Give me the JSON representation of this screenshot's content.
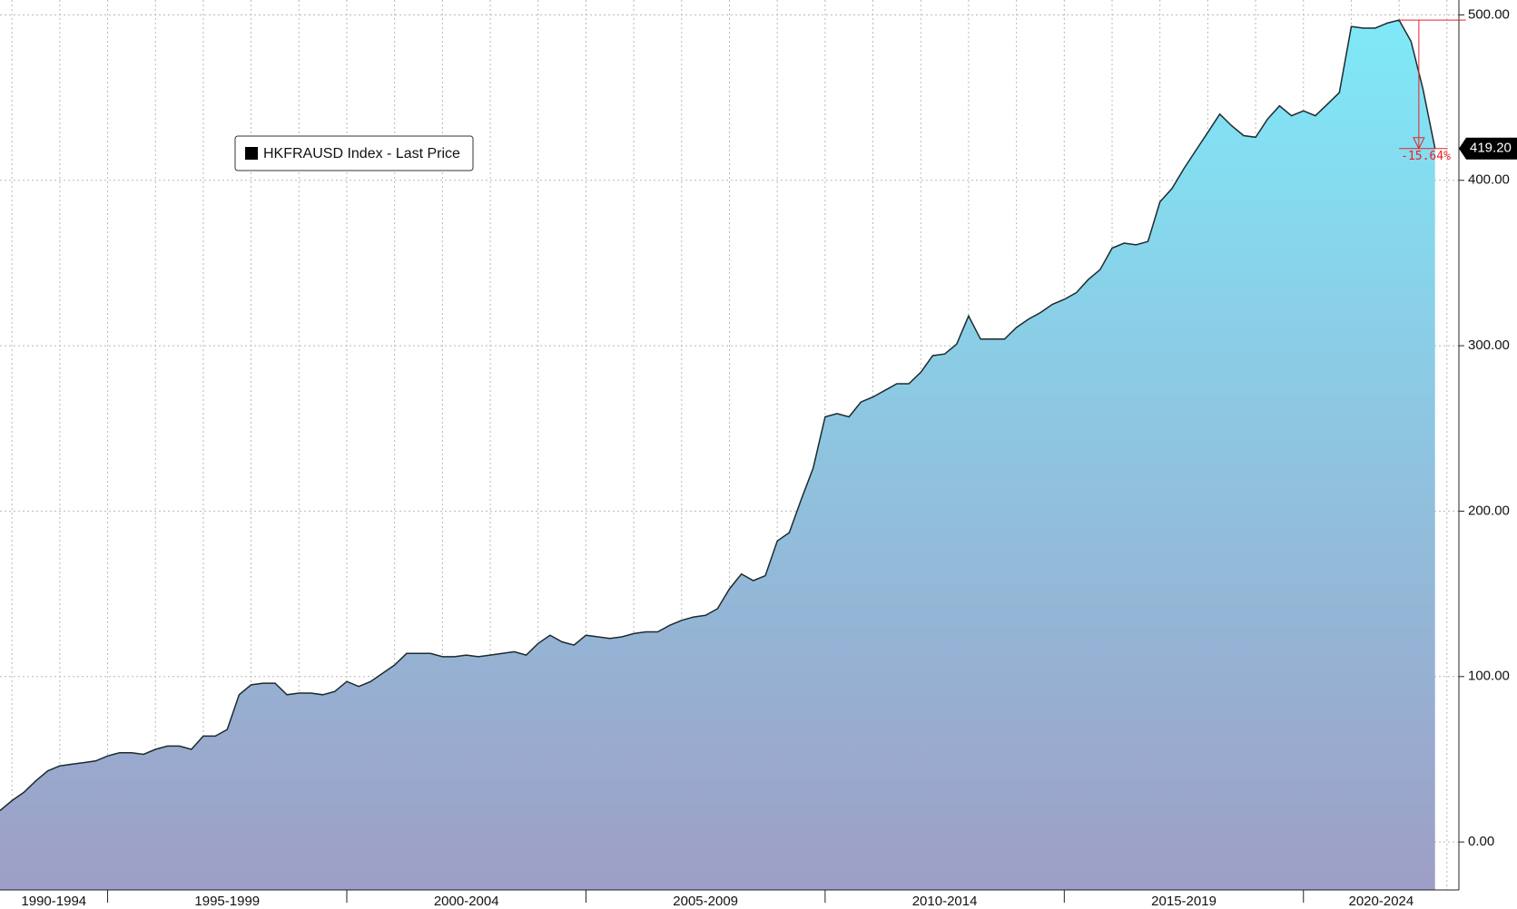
{
  "chart_data": {
    "type": "area",
    "series": [
      {
        "name": "HKFRAUSD Index - Last Price",
        "color": "#1e2a2e",
        "fill_top": "#7fe9f8",
        "fill_bottom": "#9e9ec6",
        "x": [
          1992.75,
          1993,
          1993.25,
          1993.5,
          1993.75,
          1994,
          1994.25,
          1994.5,
          1994.75,
          1995,
          1995.25,
          1995.5,
          1995.75,
          1996,
          1996.25,
          1996.5,
          1996.75,
          1997,
          1997.25,
          1997.5,
          1997.75,
          1998,
          1998.25,
          1998.5,
          1998.75,
          1999,
          1999.25,
          1999.5,
          1999.75,
          2000,
          2000.25,
          2000.5,
          2000.75,
          2001,
          2001.25,
          2001.5,
          2001.75,
          2002,
          2002.25,
          2002.5,
          2002.75,
          2003,
          2003.25,
          2003.5,
          2003.75,
          2004,
          2004.25,
          2004.5,
          2004.75,
          2005,
          2005.25,
          2005.5,
          2005.75,
          2006,
          2006.25,
          2006.5,
          2006.75,
          2007,
          2007.25,
          2007.5,
          2007.75,
          2008,
          2008.25,
          2008.5,
          2008.75,
          2009,
          2009.25,
          2009.5,
          2009.75,
          2010,
          2010.25,
          2010.5,
          2010.75,
          2011,
          2011.25,
          2011.5,
          2011.75,
          2012,
          2012.25,
          2012.5,
          2012.75,
          2013,
          2013.25,
          2013.5,
          2013.75,
          2014,
          2014.25,
          2014.5,
          2014.75,
          2015,
          2015.25,
          2015.5,
          2015.75,
          2016,
          2016.25,
          2016.5,
          2016.75,
          2017,
          2017.25,
          2017.5,
          2017.75,
          2018,
          2018.25,
          2018.5,
          2018.75,
          2019,
          2019.25,
          2019.5,
          2019.75,
          2020,
          2020.25,
          2020.5,
          2020.75,
          2021,
          2021.25,
          2021.5,
          2021.75,
          2022,
          2022.25,
          2022.5,
          2022.75
        ],
        "values": [
          19,
          25,
          30,
          37,
          43,
          46,
          47,
          48,
          49,
          52,
          54,
          54,
          53,
          56,
          58,
          58,
          56,
          64,
          64,
          68,
          89,
          95,
          96,
          96,
          89,
          90,
          90,
          89,
          91,
          97,
          94,
          97,
          102,
          107,
          114,
          114,
          114,
          112,
          112,
          113,
          112,
          113,
          114,
          115,
          113,
          120,
          125,
          121,
          119,
          125,
          124,
          123,
          124,
          126,
          127,
          127,
          131,
          134,
          136,
          137,
          141,
          153,
          162,
          158,
          161,
          182,
          187,
          207,
          226,
          257,
          259,
          257,
          266,
          269,
          273,
          277,
          277,
          284,
          294,
          295,
          301,
          318,
          304,
          304,
          304,
          311,
          316,
          320,
          325,
          328,
          332,
          340,
          346,
          359,
          362,
          361,
          363,
          387,
          395,
          407,
          418,
          429,
          440,
          433,
          427,
          426,
          437,
          445,
          439,
          442,
          439,
          446,
          453,
          493,
          492,
          492,
          495,
          496.9,
          484,
          455,
          419.2
        ],
        "value_labels": [
          null,
          null,
          null,
          null,
          null,
          null,
          null,
          null,
          null,
          null,
          null,
          null,
          null,
          null,
          null,
          null,
          null,
          null,
          null,
          null,
          null,
          null,
          null,
          null,
          null,
          null,
          null,
          null,
          null,
          null,
          null,
          null,
          null,
          null,
          null,
          null,
          null,
          null,
          null,
          null,
          null,
          null,
          null,
          null,
          null,
          null,
          null,
          null,
          null,
          null,
          null,
          null,
          null,
          null,
          null,
          null,
          null,
          null,
          null,
          null,
          null,
          null,
          null,
          null,
          null,
          null,
          null,
          null,
          null,
          null,
          null,
          null,
          null,
          null,
          null,
          null,
          null,
          null,
          null,
          null,
          null,
          null,
          null,
          null,
          null,
          null,
          null,
          null,
          null,
          null,
          null,
          null,
          null,
          null,
          null,
          null,
          null,
          null,
          null,
          null,
          null,
          null,
          null,
          null,
          null,
          null,
          null,
          null,
          null,
          null,
          null,
          null,
          null,
          null,
          null,
          null,
          null,
          null,
          null,
          null,
          "419.20"
        ]
      }
    ],
    "annotation": "-15.64%",
    "annotation_color": "#e8202a",
    "xlim": [
      1992.75,
      2023.25
    ],
    "xticks": [
      1993,
      1994,
      1995,
      1996,
      1997,
      1998,
      1999,
      2000,
      2001,
      2002,
      2003,
      2004,
      2005,
      2006,
      2007,
      2008,
      2009,
      2010,
      2011,
      2012,
      2013,
      2014,
      2015,
      2016,
      2017,
      2018,
      2019,
      2020,
      2021,
      2022,
      2023
    ],
    "periods": [
      {
        "label": "1990-1994",
        "from": 1990,
        "to": 1995
      },
      {
        "label": "1995-1999",
        "from": 1995,
        "to": 2000
      },
      {
        "label": "2000-2004",
        "from": 2000,
        "to": 2005
      },
      {
        "label": "2005-2009",
        "from": 2005,
        "to": 2010
      },
      {
        "label": "2010-2014",
        "from": 2010,
        "to": 2015
      },
      {
        "label": "2015-2019",
        "from": 2015,
        "to": 2020
      },
      {
        "label": "2020-2024",
        "from": 2020,
        "to": 2025
      }
    ],
    "ylim": [
      -29,
      509
    ],
    "yticks": [
      {
        "value": 0,
        "label": "0.00"
      },
      {
        "value": 100,
        "label": "100.00"
      },
      {
        "value": 200,
        "label": "200.00"
      },
      {
        "value": 300,
        "label": "300.00"
      },
      {
        "value": 400,
        "label": "400.00"
      },
      {
        "value": 500,
        "label": "500.00"
      }
    ],
    "grid": true,
    "legend": "upper left"
  }
}
